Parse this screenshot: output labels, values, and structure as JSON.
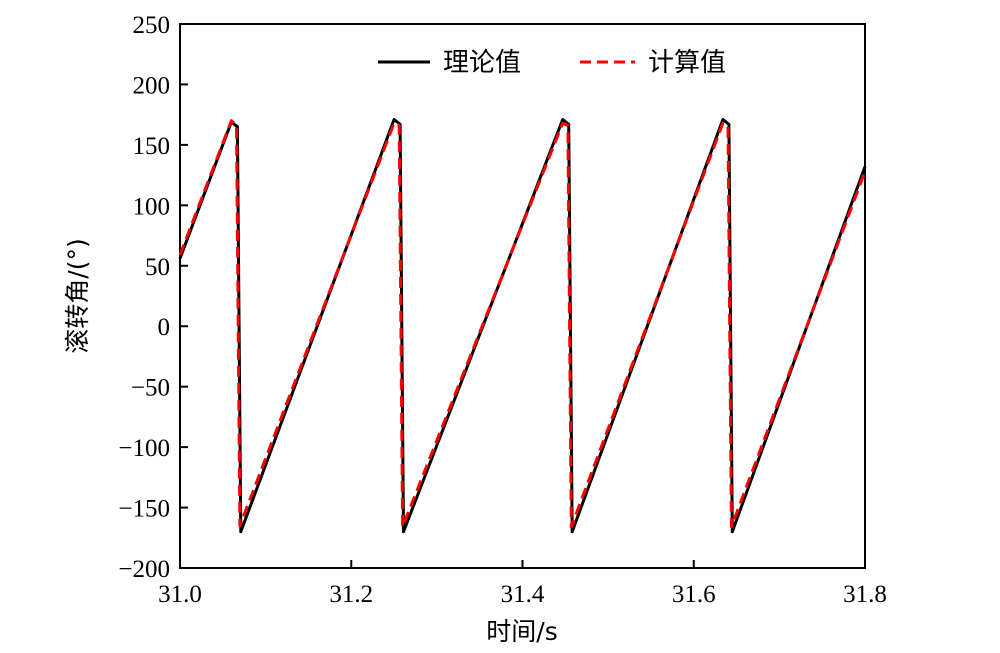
{
  "chart_data": {
    "type": "line",
    "title": "",
    "xlabel": "时间/s",
    "ylabel": "滚转角/(°)",
    "xlim": [
      31.0,
      31.8
    ],
    "ylim": [
      -200,
      250
    ],
    "xticks": [
      31.0,
      31.2,
      31.4,
      31.6,
      31.8
    ],
    "xtick_labels": [
      "31.0",
      "31.2",
      "31.4",
      "31.6",
      "31.8"
    ],
    "yticks": [
      -200,
      -150,
      -100,
      -50,
      0,
      50,
      100,
      150,
      200,
      250
    ],
    "ytick_labels": [
      "−200",
      "−150",
      "−100",
      "−50",
      "0",
      "50",
      "100",
      "150",
      "200",
      "250"
    ],
    "grid": false,
    "legend_position": "top",
    "series": [
      {
        "name": "理论值",
        "color": "#000000",
        "style": "solid",
        "x": [
          31.0,
          31.06,
          31.067,
          31.071,
          31.25,
          31.257,
          31.261,
          31.447,
          31.454,
          31.458,
          31.634,
          31.641,
          31.645,
          31.8
        ],
        "y": [
          56,
          169,
          165,
          -170,
          171,
          167,
          -170,
          171,
          167,
          -170,
          171,
          167,
          -170,
          132
        ]
      },
      {
        "name": "计算值",
        "color": "#ff0000",
        "style": "dashed",
        "x": [
          31.0,
          31.06,
          31.066,
          31.07,
          31.25,
          31.256,
          31.26,
          31.447,
          31.453,
          31.457,
          31.634,
          31.64,
          31.644,
          31.8
        ],
        "y": [
          59,
          170,
          166,
          -165,
          168,
          166,
          -166,
          168,
          166,
          -166,
          168,
          166,
          -166,
          128
        ]
      }
    ]
  }
}
